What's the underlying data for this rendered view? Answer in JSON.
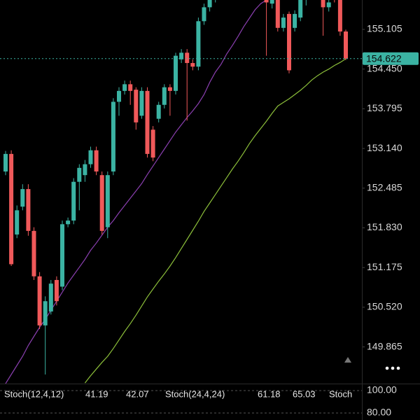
{
  "chart_data": {
    "type": "candlestick",
    "open": [
      152.76,
      153.05,
      151.72,
      152.18,
      152.47,
      151.78,
      151.03,
      150.22,
      150.45,
      150.97,
      150.86,
      151.89,
      151.95,
      152.59,
      152.7,
      152.88,
      153.11,
      152.7,
      151.84,
      152.76,
      153.91,
      154.09,
      154.2,
      154.11,
      153.68,
      154.09,
      153.45,
      153.63,
      153.86,
      154.15,
      154.09,
      154.61,
      154.72,
      154.55,
      154.49,
      155.24,
      155.47,
      155.6,
      155.8,
      155.95,
      155.85,
      156.0,
      155.9,
      155.75,
      155.9,
      155.7,
      155.8,
      155.53,
      155.59,
      155.13,
      155.36,
      155.13,
      155.3,
      155.59,
      155.75,
      155.65,
      155.62,
      155.47,
      155.7,
      155.59,
      155.07
    ],
    "high": [
      153.1,
      153.11,
      152.2,
      152.55,
      152.55,
      151.84,
      151.1,
      150.7,
      150.97,
      151.03,
      151.95,
      152.0,
      152.65,
      152.88,
      152.95,
      153.17,
      153.17,
      152.76,
      152.76,
      153.97,
      154.15,
      154.26,
      154.26,
      154.15,
      154.15,
      154.15,
      153.51,
      153.91,
      154.2,
      154.2,
      154.72,
      154.78,
      154.78,
      154.61,
      155.3,
      155.53,
      155.7,
      155.85,
      156.0,
      156.0,
      156.05,
      156.05,
      155.95,
      155.95,
      155.95,
      155.85,
      155.85,
      155.7,
      155.65,
      155.36,
      155.4,
      155.42,
      155.65,
      155.8,
      155.8,
      155.85,
      155.7,
      155.65,
      155.75,
      155.65,
      155.1
    ],
    "low": [
      152.7,
      151.2,
      151.66,
      152.12,
      151.7,
      150.97,
      150.16,
      149.41,
      150.4,
      150.55,
      150.8,
      151.84,
      151.89,
      152.12,
      152.59,
      152.82,
      152.7,
      151.72,
      151.66,
      152.7,
      153.68,
      154.03,
      153.86,
      153.45,
      153.63,
      152.99,
      152.93,
      153.57,
      153.8,
      153.68,
      154.03,
      154.55,
      153.6,
      154.43,
      154.43,
      155.18,
      155.4,
      155.55,
      155.75,
      155.8,
      155.8,
      155.85,
      155.7,
      155.7,
      155.65,
      155.65,
      154.67,
      155.45,
      155.07,
      155.07,
      154.38,
      155.07,
      155.24,
      155.5,
      155.6,
      155.6,
      155.0,
      155.4,
      155.55,
      155.0,
      154.6
    ],
    "close": [
      153.05,
      151.23,
      152.12,
      152.47,
      151.78,
      151.03,
      150.22,
      150.62,
      150.91,
      150.62,
      151.89,
      151.95,
      152.59,
      152.82,
      152.88,
      153.11,
      152.76,
      151.78,
      152.7,
      153.91,
      154.09,
      154.2,
      154.09,
      153.57,
      154.09,
      153.05,
      152.99,
      153.86,
      154.15,
      154.09,
      154.67,
      154.72,
      154.55,
      154.49,
      155.24,
      155.47,
      155.62,
      155.8,
      155.95,
      155.85,
      156.0,
      155.9,
      155.75,
      155.9,
      155.7,
      155.8,
      155.55,
      155.6,
      155.13,
      155.3,
      154.43,
      155.36,
      155.59,
      155.7,
      155.65,
      155.8,
      155.47,
      155.55,
      155.6,
      155.07,
      154.622
    ],
    "up_color": "#3bb3a3",
    "down_color": "#f0595a",
    "ylim": [
      149.26,
      155.59
    ],
    "yticks": [
      149.865,
      {
        "value": 150.52,
        "label": "150.520"
      },
      151.175,
      {
        "value": 151.83,
        "label": "151.830"
      },
      152.485,
      {
        "value": 153.14,
        "label": "153.140"
      },
      153.795,
      {
        "value": 154.45,
        "label": "154.450"
      },
      155.105
    ],
    "last_price": 154.622,
    "last_price_color": "#3bb3a3",
    "moving_averages": [
      {
        "color": "#8a3fb0",
        "values": [
          149.26,
          149.41,
          149.56,
          149.71,
          149.89,
          150.04,
          150.19,
          150.32,
          150.47,
          150.62,
          150.77,
          150.92,
          151.05,
          151.18,
          151.31,
          151.46,
          151.58,
          151.71,
          151.84,
          151.95,
          152.08,
          152.2,
          152.32,
          152.44,
          152.56,
          152.71,
          152.85,
          152.99,
          153.13,
          153.27,
          153.41,
          153.53,
          153.65,
          153.76,
          153.88,
          154.03,
          154.23,
          154.4,
          154.53,
          154.7,
          154.84,
          154.99,
          155.15,
          155.29,
          155.43,
          155.53,
          155.59,
          null,
          null,
          null,
          null,
          null,
          null,
          null,
          null,
          null,
          null,
          null,
          null,
          null,
          null
        ]
      },
      {
        "color": "#8cbf3a",
        "values": [
          null,
          null,
          null,
          null,
          null,
          null,
          null,
          null,
          null,
          null,
          null,
          null,
          null,
          null,
          149.27,
          149.39,
          149.5,
          149.61,
          149.71,
          149.84,
          149.98,
          150.12,
          150.25,
          150.39,
          150.54,
          150.69,
          150.82,
          150.95,
          151.07,
          151.2,
          151.34,
          151.49,
          151.64,
          151.79,
          151.94,
          152.1,
          152.24,
          152.38,
          152.52,
          152.66,
          152.8,
          152.93,
          153.07,
          153.22,
          153.35,
          153.47,
          153.59,
          153.72,
          153.84,
          153.9,
          153.96,
          154.03,
          154.1,
          154.18,
          154.27,
          154.34,
          154.4,
          154.45,
          154.51,
          154.56,
          154.62
        ]
      }
    ],
    "stoch_panel": {
      "indicators": [
        {
          "name": "Stoch(12,4,12)",
          "values": [
            41.19,
            42.07
          ]
        },
        {
          "name": "Stoch(24,4,24)",
          "values": [
            61.18,
            65.03
          ]
        },
        {
          "name": "Stoch"
        }
      ],
      "ylim": [
        73.75,
        106.25
      ],
      "yticks": [
        {
          "value": 100,
          "label": "100.00"
        },
        {
          "value": 80,
          "label": "80.00"
        }
      ]
    }
  }
}
